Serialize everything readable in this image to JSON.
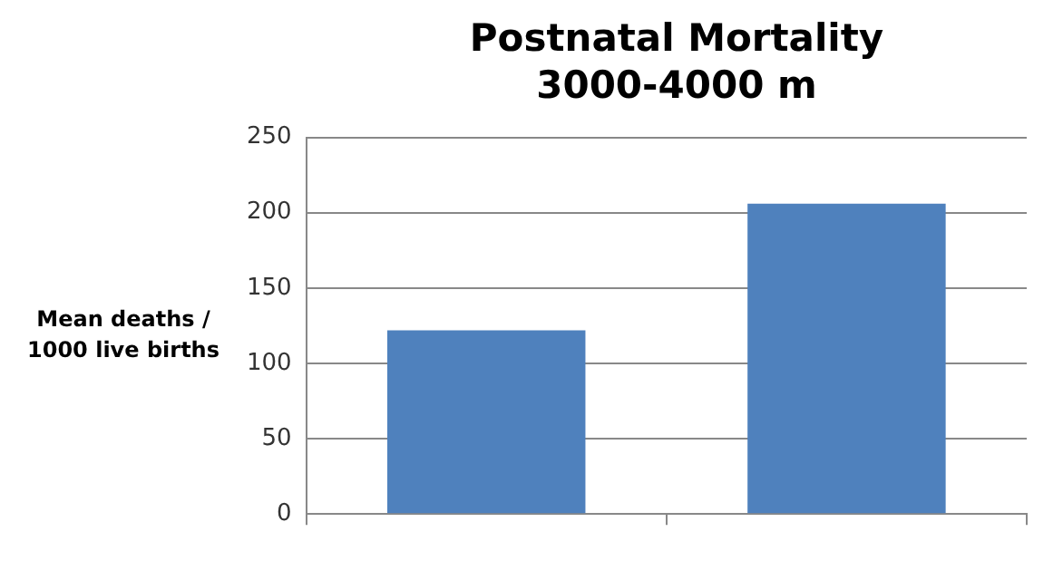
{
  "chart_data": {
    "type": "bar",
    "title": "Postnatal Mortality 3000-4000 m",
    "ylabel": "Mean deaths / 1000 live births",
    "categories": [
      null,
      null
    ],
    "values": [
      122,
      206
    ],
    "color": "#4f81bd",
    "ylim": [
      0,
      250
    ],
    "yticks": [
      0,
      50,
      100,
      150,
      200,
      250
    ],
    "grid": "y",
    "legend": false
  }
}
